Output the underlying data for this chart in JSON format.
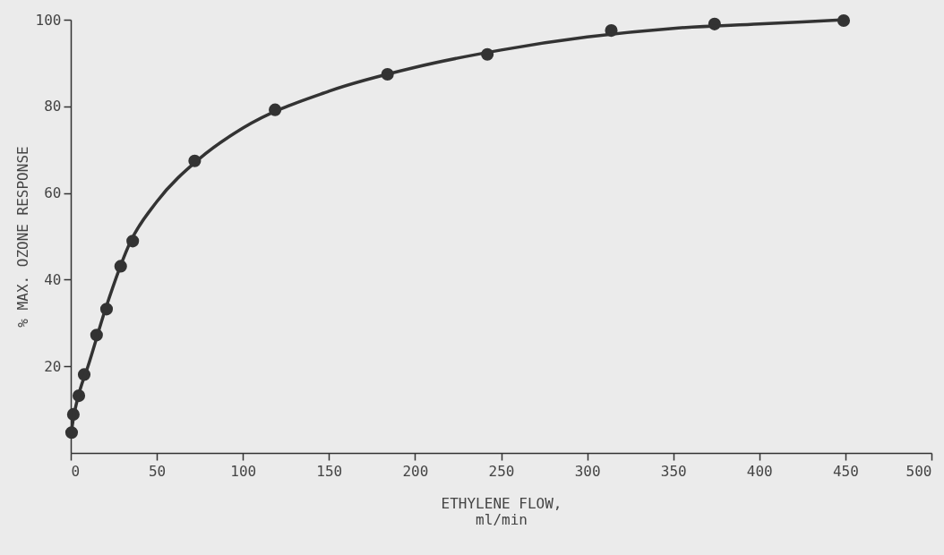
{
  "chart_data": {
    "type": "scatter",
    "xlabel": "ETHYLENE FLOW,\nml/min",
    "ylabel": "% MAX. OZONE RESPONSE",
    "xlim": [
      0,
      500
    ],
    "xticks": [
      0,
      50,
      100,
      150,
      200,
      250,
      300,
      350,
      400,
      450,
      500
    ],
    "ylim": [
      0,
      100
    ],
    "yticks": [
      20,
      40,
      60,
      80,
      100
    ],
    "grid": false,
    "series": [
      {
        "marker": "circle",
        "color": "#333333",
        "x": [
          0.5,
          1.5,
          4.7,
          7.8,
          15,
          20.8,
          29,
          36,
          72,
          118.7,
          184,
          242,
          314,
          374,
          449
        ],
        "values": [
          4.7,
          8.9,
          13.2,
          18.1,
          27.2,
          33.2,
          43.1,
          48.9,
          67.4,
          79.2,
          87.4,
          92,
          97.5,
          99,
          99.8
        ]
      },
      {
        "type": "line",
        "line_style": "solid",
        "color": "#333333",
        "x": [
          0,
          2,
          5,
          10,
          20,
          35,
          50,
          75,
          100,
          150,
          200,
          250,
          300,
          350,
          400,
          450
        ],
        "values": [
          4,
          9,
          14,
          20,
          33,
          49,
          58,
          68,
          75,
          83.5,
          89,
          93,
          96,
          98,
          99,
          100
        ]
      }
    ]
  }
}
